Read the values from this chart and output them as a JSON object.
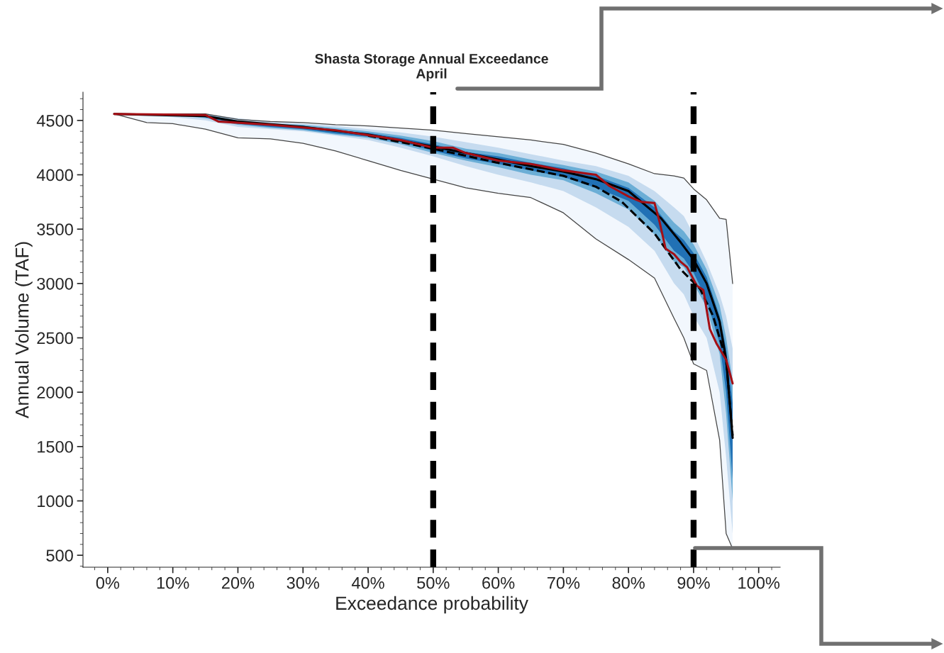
{
  "chart_data": {
    "type": "line",
    "title": "Shasta Storage Annual Exceedance\nApril",
    "xlabel": "Exceedance probability",
    "ylabel": "Annual Volume (TAF)",
    "xlim": [
      -3.8,
      103.3
    ],
    "ylim": [
      390,
      4760
    ],
    "xticks": [
      {
        "value": 0,
        "label": "0%"
      },
      {
        "value": 10,
        "label": "10%"
      },
      {
        "value": 20,
        "label": "20%"
      },
      {
        "value": 30,
        "label": "30%"
      },
      {
        "value": 40,
        "label": "40%"
      },
      {
        "value": 50,
        "label": "50%"
      },
      {
        "value": 60,
        "label": "60%"
      },
      {
        "value": 70,
        "label": "70%"
      },
      {
        "value": 80,
        "label": "80%"
      },
      {
        "value": 90,
        "label": "90%"
      },
      {
        "value": 100,
        "label": "100%"
      }
    ],
    "yticks": [
      500,
      1000,
      1500,
      2000,
      2500,
      3000,
      3500,
      4000,
      4500
    ],
    "grid": false,
    "legend": false,
    "ref_lines": [
      {
        "axis": "x",
        "value": 50,
        "color": "#000000",
        "line_style": "dashed"
      },
      {
        "axis": "x",
        "value": 90,
        "color": "#000000",
        "line_style": "dashed"
      }
    ],
    "series": [
      {
        "type": "line",
        "color": "#f2f7fd",
        "x": [
          1,
          6,
          10,
          15,
          20,
          25,
          30,
          35,
          40,
          45,
          50,
          55,
          60,
          65,
          70,
          75,
          80,
          84,
          87,
          88.5,
          90,
          92,
          94,
          95,
          96
        ],
        "values": [
          null,
          null,
          null,
          null,
          null,
          null,
          null,
          null,
          null,
          null,
          null,
          null,
          null,
          null,
          null,
          null,
          null,
          null,
          null,
          null,
          null,
          null,
          null,
          null,
          null
        ],
        "upper": [
          4560,
          4560,
          4560,
          4560,
          4510,
          4490,
          4480,
          4460,
          4450,
          4430,
          4410,
          4380,
          4350,
          4320,
          4280,
          4200,
          4100,
          4010,
          3990,
          3970,
          3870,
          3770,
          3600,
          3590,
          3000
        ],
        "lower": [
          4560,
          4480,
          4470,
          4420,
          4340,
          4330,
          4290,
          4220,
          4130,
          4040,
          3960,
          3880,
          3830,
          3790,
          3650,
          3410,
          3220,
          3050,
          2680,
          2500,
          2260,
          2200,
          1560,
          700,
          560
        ]
      },
      {
        "type": "line",
        "color": "#c6dbef",
        "x": [
          1,
          6,
          10,
          15,
          20,
          25,
          30,
          35,
          40,
          45,
          50,
          55,
          60,
          65,
          70,
          75,
          80,
          84,
          87,
          88.5,
          90,
          92,
          94,
          95,
          96
        ],
        "values": [
          null,
          null,
          null,
          null,
          null,
          null,
          null,
          null,
          null,
          null,
          null,
          null,
          null,
          null,
          null,
          null,
          null,
          null,
          null,
          null,
          null,
          null,
          null,
          null,
          null
        ],
        "upper": [
          4560,
          4560,
          4560,
          4560,
          4520,
          4490,
          4470,
          4450,
          4420,
          4390,
          4350,
          4300,
          4250,
          4190,
          4130,
          4080,
          3990,
          3850,
          3700,
          3620,
          3450,
          3200,
          2900,
          2700,
          2400
        ],
        "lower": [
          4560,
          4540,
          4530,
          4500,
          4440,
          4420,
          4400,
          4360,
          4320,
          4250,
          4170,
          4080,
          4000,
          3930,
          3850,
          3700,
          3520,
          3300,
          3000,
          2900,
          2700,
          2500,
          2000,
          1400,
          700
        ]
      },
      {
        "type": "line",
        "color": "#6baed6",
        "x": [
          1,
          6,
          10,
          15,
          20,
          25,
          30,
          35,
          40,
          45,
          50,
          55,
          60,
          65,
          70,
          75,
          80,
          84,
          87,
          88.5,
          90,
          92,
          94,
          95,
          96
        ],
        "values": [
          null,
          null,
          null,
          null,
          null,
          null,
          null,
          null,
          null,
          null,
          null,
          null,
          null,
          null,
          null,
          null,
          null,
          null,
          null,
          null,
          null,
          null,
          null,
          null,
          null
        ],
        "upper": [
          4560,
          4560,
          4560,
          4555,
          4500,
          4470,
          4460,
          4430,
          4400,
          4360,
          4310,
          4240,
          4200,
          4140,
          4090,
          4030,
          3930,
          3760,
          3560,
          3480,
          3360,
          3130,
          2800,
          2500,
          2100
        ],
        "lower": [
          4560,
          4550,
          4550,
          4520,
          4460,
          4430,
          4410,
          4370,
          4340,
          4280,
          4200,
          4130,
          4070,
          4000,
          3950,
          3830,
          3680,
          3450,
          3200,
          3150,
          3000,
          2780,
          2350,
          1800,
          1000
        ]
      },
      {
        "type": "line",
        "color": "#2171b5",
        "x": [
          1,
          6,
          10,
          15,
          20,
          25,
          30,
          35,
          40,
          45,
          50,
          55,
          60,
          65,
          70,
          75,
          80,
          84,
          87,
          88.5,
          90,
          92,
          94,
          95,
          96
        ],
        "values": [
          null,
          null,
          null,
          null,
          null,
          null,
          null,
          null,
          null,
          null,
          null,
          null,
          null,
          null,
          null,
          null,
          null,
          null,
          null,
          null,
          null,
          null,
          null,
          null,
          null
        ],
        "upper": [
          4560,
          4560,
          4560,
          4550,
          4490,
          4460,
          4450,
          4410,
          4385,
          4340,
          4280,
          4210,
          4170,
          4110,
          4060,
          3990,
          3880,
          3700,
          3480,
          3400,
          3280,
          3060,
          2700,
          2400,
          1900
        ],
        "lower": [
          4560,
          4555,
          4555,
          4530,
          4470,
          4440,
          4420,
          4380,
          4350,
          4300,
          4220,
          4150,
          4100,
          4040,
          3980,
          3880,
          3760,
          3540,
          3300,
          3230,
          3100,
          2850,
          2450,
          2000,
          1200
        ]
      },
      {
        "color": "#444444",
        "line_style": "solid",
        "x": [
          1,
          6,
          10,
          15,
          20,
          25,
          30,
          35,
          40,
          45,
          50,
          55,
          60,
          65,
          70,
          75,
          80,
          84,
          87,
          88.5,
          90,
          92,
          94,
          95,
          96
        ],
        "values": [
          4560,
          4560,
          4560,
          4560,
          4510,
          4490,
          4480,
          4460,
          4450,
          4430,
          4410,
          4380,
          4350,
          4320,
          4280,
          4200,
          4100,
          4010,
          3990,
          3970,
          3870,
          3770,
          3600,
          3590,
          3000
        ]
      },
      {
        "color": "#444444",
        "line_style": "solid",
        "x": [
          1,
          6,
          10,
          15,
          20,
          25,
          30,
          35,
          40,
          45,
          50,
          55,
          60,
          65,
          70,
          75,
          80,
          84,
          87,
          88.5,
          90,
          92,
          94,
          95,
          96
        ],
        "values": [
          4560,
          4480,
          4470,
          4420,
          4340,
          4330,
          4290,
          4220,
          4130,
          4040,
          3960,
          3880,
          3830,
          3790,
          3650,
          3410,
          3220,
          3050,
          2680,
          2500,
          2260,
          2200,
          1560,
          700,
          560
        ]
      },
      {
        "type": "line",
        "color": "#000000",
        "line_style": "dashed",
        "x": [
          40,
          50,
          60,
          65,
          70,
          75,
          79,
          84,
          88,
          91,
          93,
          95,
          96
        ],
        "values": [
          4360,
          4240,
          4110,
          4050,
          3990,
          3890,
          3750,
          3460,
          3130,
          2950,
          2700,
          2300,
          1600
        ]
      },
      {
        "type": "line",
        "color": "#000000",
        "line_style": "solid",
        "x": [
          1,
          15,
          20,
          30,
          40,
          50,
          55,
          60,
          65,
          70,
          75,
          80,
          85,
          88,
          90,
          92,
          94,
          95,
          96
        ],
        "values": [
          4560,
          4540,
          4490,
          4440,
          4370,
          4260,
          4200,
          4140,
          4080,
          4030,
          3960,
          3850,
          3600,
          3380,
          3220,
          3000,
          2650,
          2300,
          1580
        ]
      },
      {
        "type": "line",
        "color": "#a50f15",
        "line_style": "solid",
        "x": [
          1,
          15,
          17,
          25,
          35,
          45,
          50,
          53,
          55,
          60,
          65,
          70,
          75,
          77,
          78.5,
          80,
          82,
          84,
          84.8,
          85.7,
          87,
          88,
          89,
          90.5,
          91.5,
          92.5,
          93.5,
          95,
          96
        ],
        "values": [
          4560,
          4550,
          4490,
          4460,
          4410,
          4320,
          4250,
          4250,
          4200,
          4130,
          4100,
          4040,
          4000,
          3900,
          3850,
          3800,
          3750,
          3740,
          3560,
          3320,
          3270,
          3200,
          3150,
          2980,
          2940,
          2580,
          2450,
          2300,
          2080
        ]
      }
    ]
  }
}
